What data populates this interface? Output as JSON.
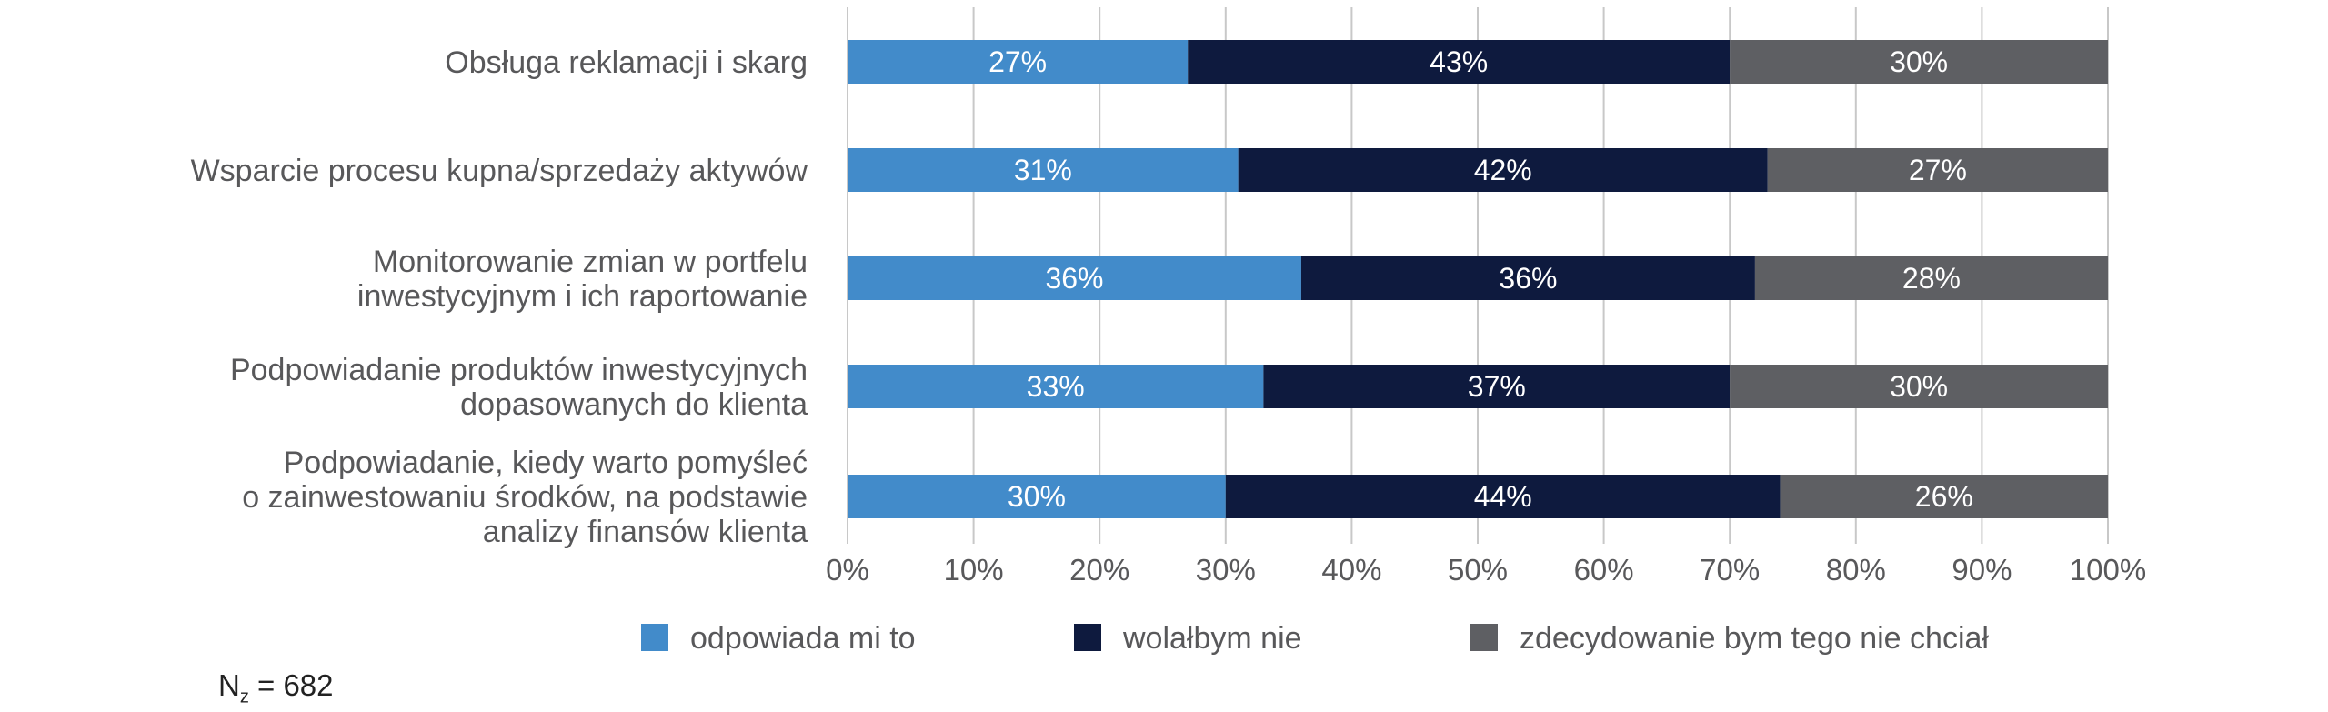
{
  "chart_data": {
    "type": "bar",
    "orientation": "horizontal",
    "stacked": true,
    "categories": [
      "Obsługa reklamacji i skarg",
      "Wsparcie procesu kupna/sprzedaży aktywów",
      "Monitorowanie zmian w portfelu\ninwestycyjnym i ich raportowanie",
      "Podpowiadanie produktów inwestycyjnych\ndopasowanych do klienta",
      "Podpowiadanie, kiedy warto pomyśleć\no zainwestowaniu środków, na podstawie\nanalizy finansów klienta"
    ],
    "series": [
      {
        "name": "odpowiada mi to",
        "color": "#428bca",
        "values": [
          27,
          31,
          36,
          33,
          30
        ]
      },
      {
        "name": "wolałbym nie",
        "color": "#0e1a3e",
        "values": [
          43,
          42,
          36,
          37,
          44
        ]
      },
      {
        "name": "zdecydowanie bym tego nie chciał",
        "color": "#5e5f63",
        "values": [
          30,
          27,
          28,
          30,
          26
        ]
      }
    ],
    "xlim": [
      0,
      100
    ],
    "xticks": [
      "0%",
      "10%",
      "20%",
      "30%",
      "40%",
      "50%",
      "60%",
      "70%",
      "80%",
      "90%",
      "100%"
    ],
    "value_suffix": "%",
    "grid": "vertical",
    "gridline_color": "#c8c8c8",
    "legend_position": "bottom"
  },
  "note": {
    "prefix": "N",
    "subscript": "z",
    "text": " = 682"
  }
}
